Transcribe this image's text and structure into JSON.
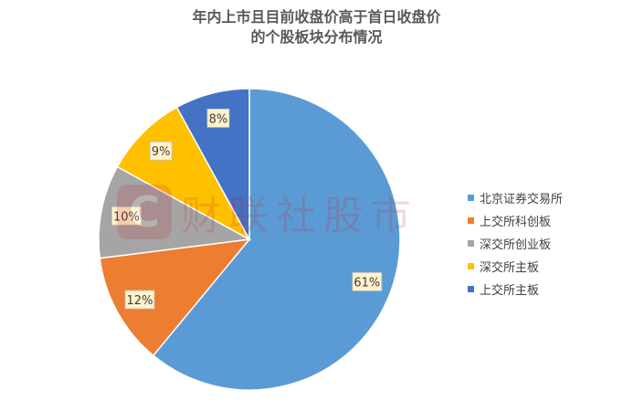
{
  "title": {
    "line1": "年内上市且目前收盘价高于首日收盘价",
    "line2": "的个股板块分布情况"
  },
  "watermark": {
    "logo_glyph": "C",
    "text": "财联社股市"
  },
  "chart_data": {
    "type": "pie",
    "title": "年内上市且目前收盘价高于首日收盘价的个股板块分布情况",
    "legend_position": "right",
    "slices": [
      {
        "name": "北京证券交易所",
        "value": 61,
        "label": "61%",
        "color": "#5b9bd5"
      },
      {
        "name": "上交所科创板",
        "value": 12,
        "label": "12%",
        "color": "#ed7d31"
      },
      {
        "name": "深交所创业板",
        "value": 10,
        "label": "10%",
        "color": "#a5a5a5"
      },
      {
        "name": "深交所主板",
        "value": 9,
        "label": "9%",
        "color": "#ffc000"
      },
      {
        "name": "上交所主板",
        "value": 8,
        "label": "8%",
        "color": "#4472c4"
      }
    ]
  }
}
